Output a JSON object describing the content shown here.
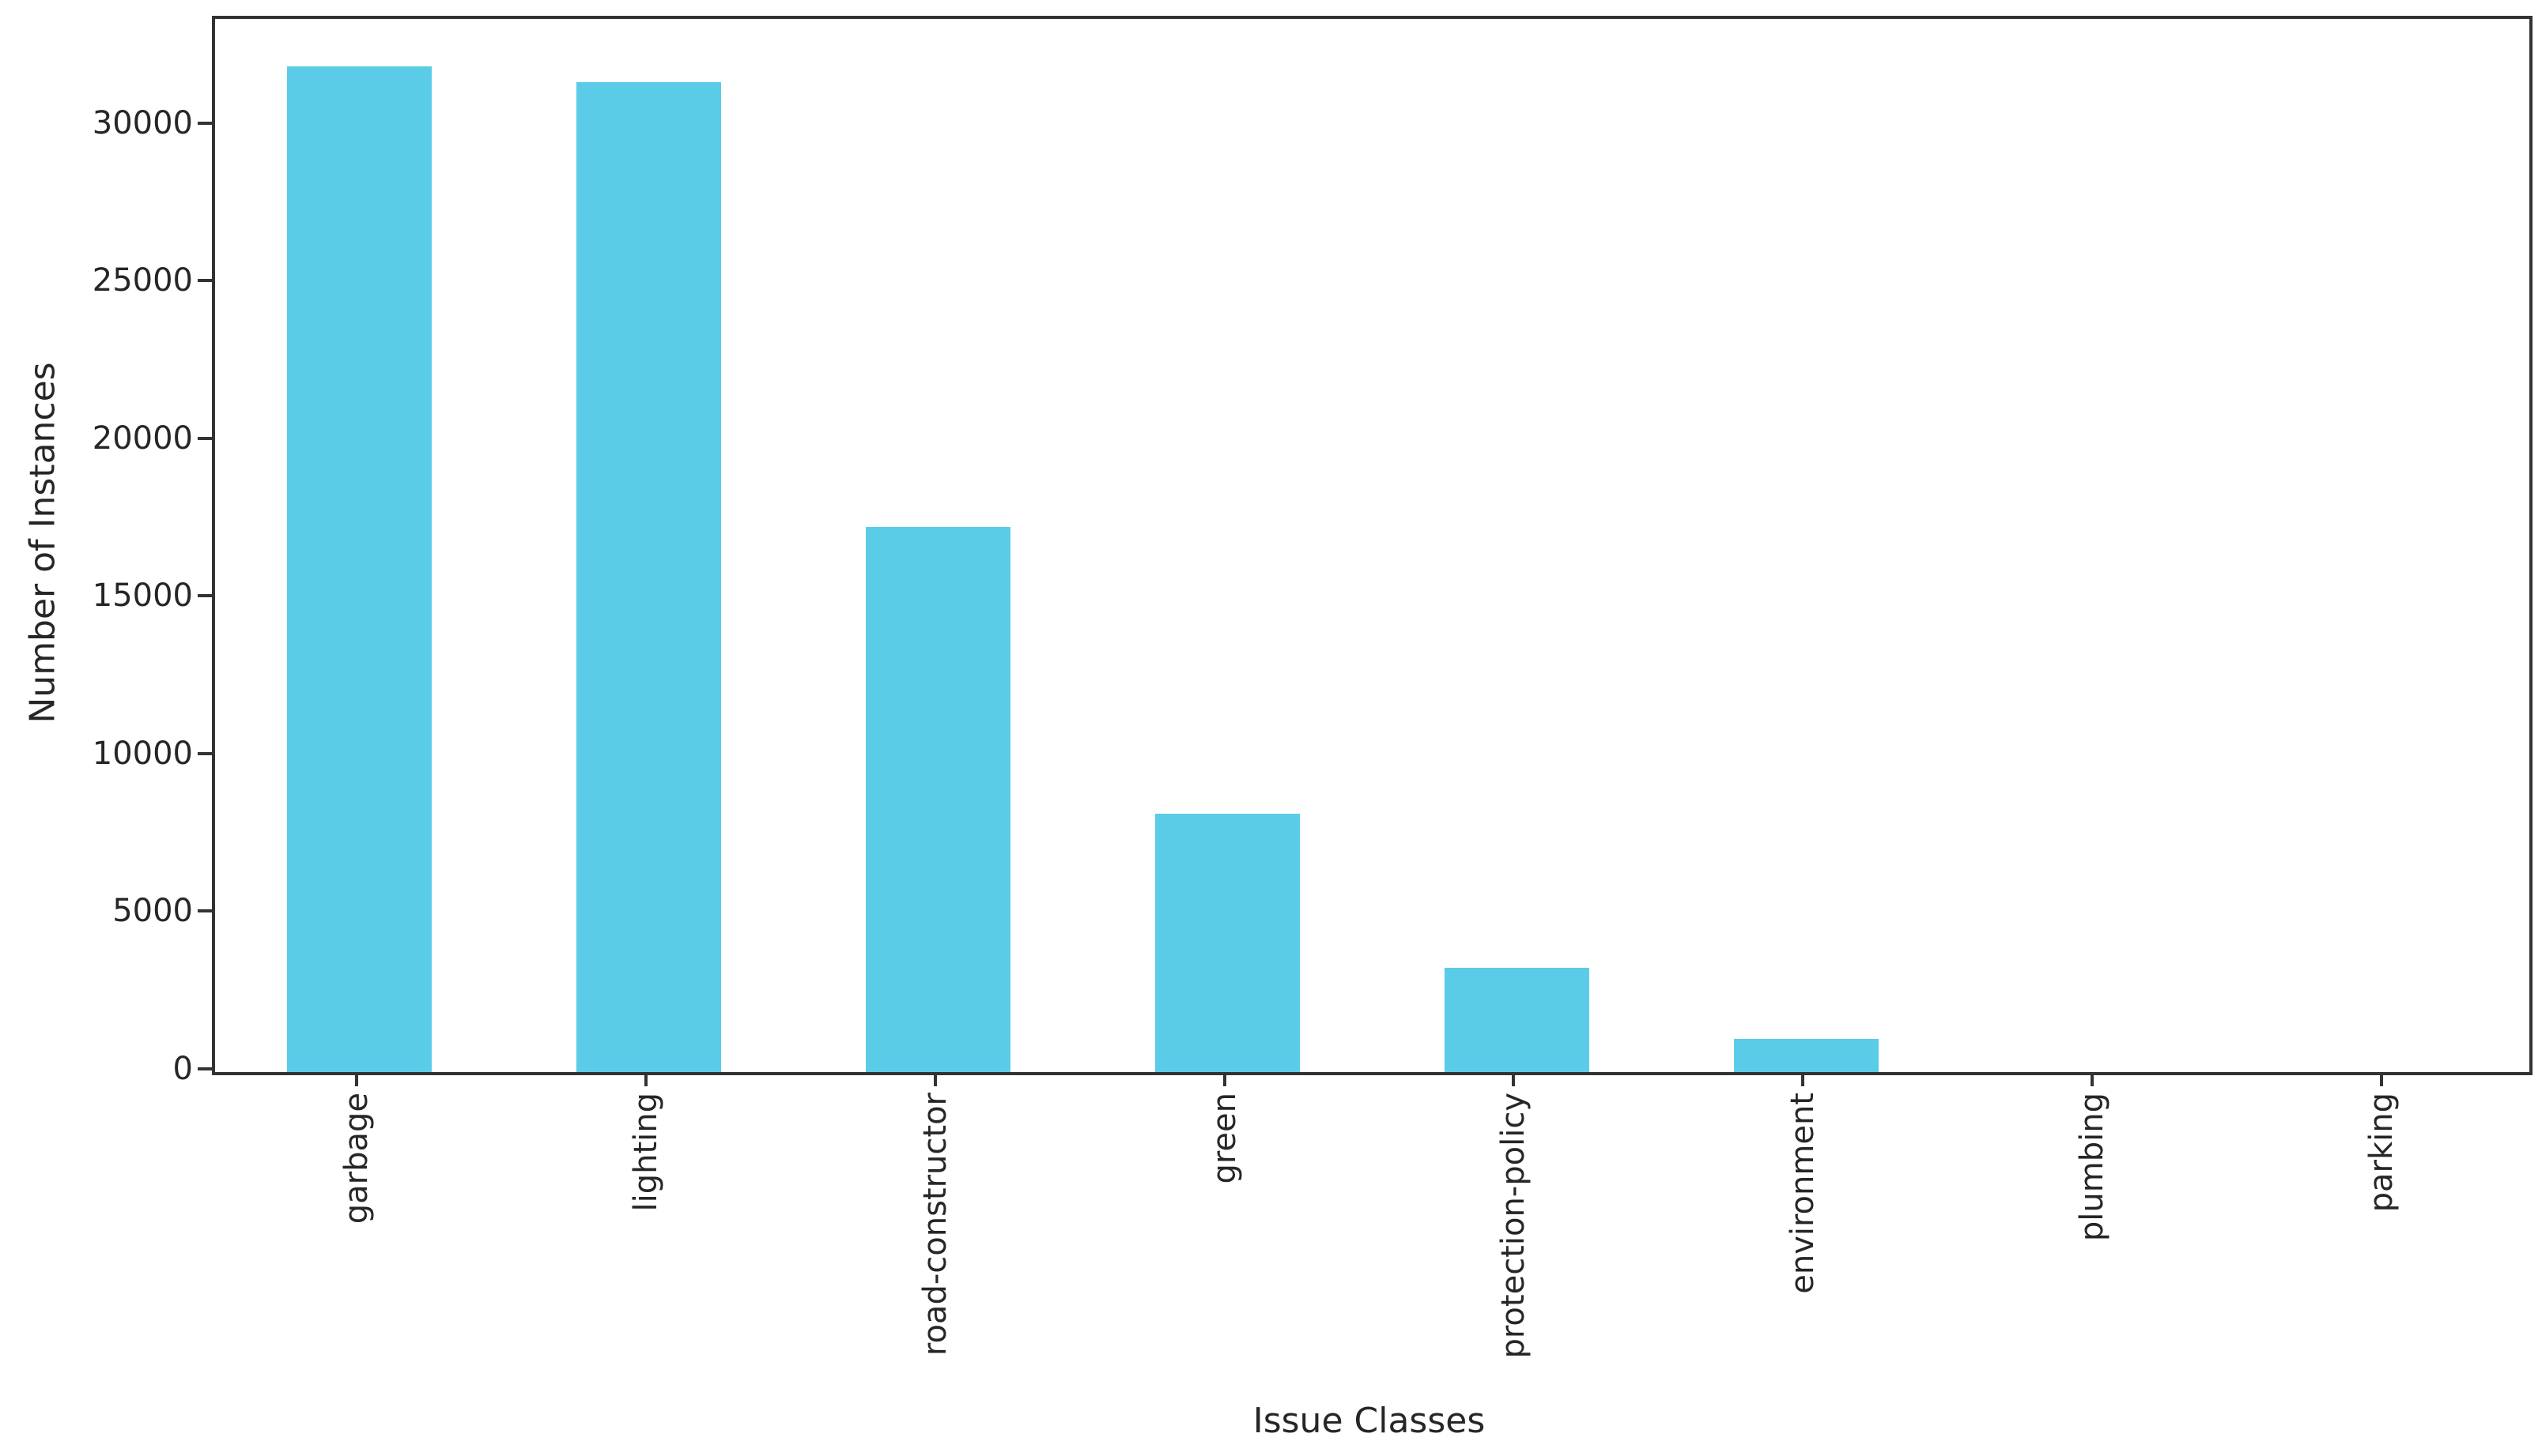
{
  "figure": {
    "background": "#ffffff",
    "text_color": "#262626",
    "axis_color": "#333333"
  },
  "chart_data": {
    "type": "bar",
    "title": "",
    "xlabel": "Issue Classes",
    "ylabel": "Number of Instances",
    "categories": [
      "garbage",
      "lighting",
      "road-constructor",
      "green",
      "protection-policy",
      "environment",
      "plumbing",
      "parking"
    ],
    "values": [
      31900,
      31400,
      17300,
      8200,
      3300,
      1050,
      0,
      0
    ],
    "yticks": [
      0,
      5000,
      10000,
      15000,
      20000,
      25000,
      30000
    ],
    "ytick_labels": [
      "0",
      "5000",
      "10000",
      "15000",
      "20000",
      "25000",
      "30000"
    ],
    "ylim": [
      0,
      33400
    ],
    "bar_color": "#5bcce8",
    "bar_width_fraction": 0.5,
    "x_tick_rotation_deg": 90,
    "grid": false,
    "legend_position": "none"
  }
}
